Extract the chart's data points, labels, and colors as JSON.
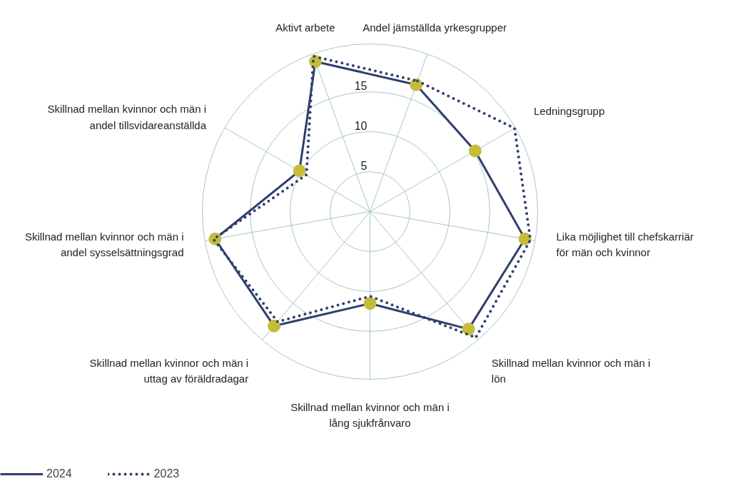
{
  "chart_data": {
    "type": "radar",
    "categories": [
      "Andel jämställda yrkesgrupper",
      "Ledningsgrupp",
      "Lika möjlighet till chefskarriär för män och kvinnor",
      "Skillnad mellan kvinnor och män i lön",
      "Skillnad mellan kvinnor och män i lång sjukfrånvaro",
      "Skillnad mellan kvinnor och män i uttag av föräldradagar",
      "Skillnad mellan kvinnor och män i andel sysselsättningsgrad",
      "Skillnad mellan kvinnor och män i andel tillsvidareanställda",
      "Aktivt arbete"
    ],
    "series": [
      {
        "name": "2024",
        "color": "#2e3f6e",
        "line_style": "solid",
        "marker": "circle",
        "values": [
          16.9,
          15.2,
          19.7,
          19.2,
          11.5,
          18.7,
          19.7,
          10.2,
          20.0
        ]
      },
      {
        "name": "2023",
        "color": "#2e3f6e",
        "line_style": "dotted",
        "marker": "none",
        "values": [
          17.4,
          20.9,
          20.4,
          20.6,
          10.6,
          18.0,
          19.9,
          9.2,
          20.7
        ]
      }
    ],
    "ylim": [
      0,
      21
    ],
    "yticks": [
      5,
      10,
      15
    ],
    "grid": true,
    "legend": "bottom left"
  }
}
